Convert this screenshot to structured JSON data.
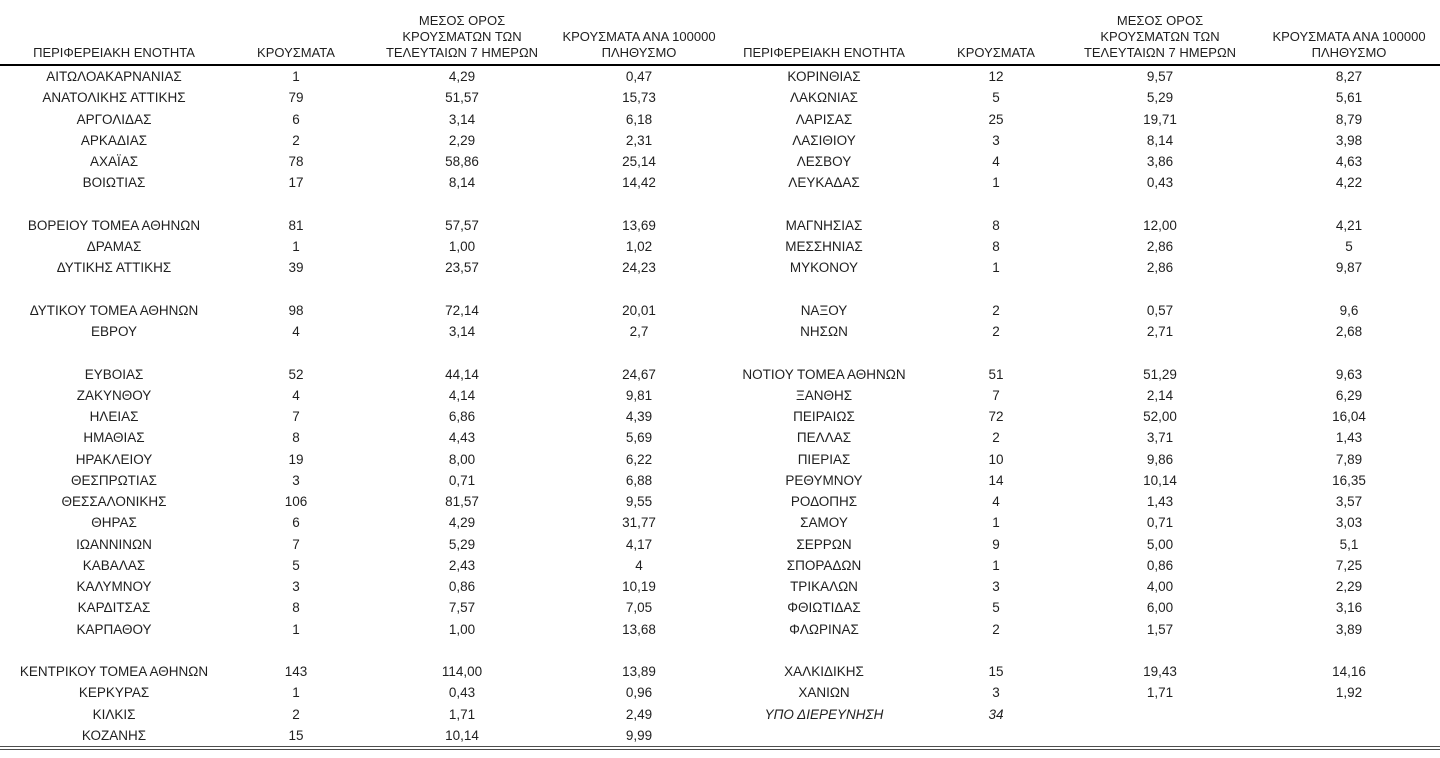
{
  "page": {
    "background": "#ffffff"
  },
  "colors": {
    "text": "#1f1f1f",
    "header_rule": "#000000",
    "bottom_rule": "#4d4d4d"
  },
  "table": {
    "column_headers": [
      "ΠΕΡΙΦΕΡΕΙΑΚΗ ΕΝΟΤΗΤΑ",
      "ΚΡΟΥΣΜΑΤΑ",
      "ΜΕΣΟΣ ΟΡΟΣ ΚΡΟΥΣΜΑΤΩΝ ΤΩΝ ΤΕΛΕΥΤΑΙΩΝ 7 ΗΜΕΡΩΝ",
      "ΚΡΟΥΣΜΑΤΑ ΑΝΑ 100000 ΠΛΗΘΥΣΜΟ"
    ],
    "rows": [
      {
        "left": [
          "ΑΙΤΩΛΟΑΚΑΡΝΑΝΙΑΣ",
          "1",
          "4,29",
          "0,47"
        ],
        "right": [
          "ΚΟΡΙΝΘΙΑΣ",
          "12",
          "9,57",
          "8,27"
        ]
      },
      {
        "left": [
          "ΑΝΑΤΟΛΙΚΗΣ ΑΤΤΙΚΗΣ",
          "79",
          "51,57",
          "15,73"
        ],
        "right": [
          "ΛΑΚΩΝΙΑΣ",
          "5",
          "5,29",
          "5,61"
        ]
      },
      {
        "left": [
          "ΑΡΓΟΛΙΔΑΣ",
          "6",
          "3,14",
          "6,18"
        ],
        "right": [
          "ΛΑΡΙΣΑΣ",
          "25",
          "19,71",
          "8,79"
        ]
      },
      {
        "left": [
          "ΑΡΚΑΔΙΑΣ",
          "2",
          "2,29",
          "2,31"
        ],
        "right": [
          "ΛΑΣΙΘΙΟΥ",
          "3",
          "8,14",
          "3,98"
        ]
      },
      {
        "left": [
          "ΑΧΑΪΑΣ",
          "78",
          "58,86",
          "25,14"
        ],
        "right": [
          "ΛΕΣΒΟΥ",
          "4",
          "3,86",
          "4,63"
        ]
      },
      {
        "left": [
          "ΒΟΙΩΤΙΑΣ",
          "17",
          "8,14",
          "14,42"
        ],
        "right": [
          "ΛΕΥΚΑΔΑΣ",
          "1",
          "0,43",
          "4,22"
        ]
      },
      {
        "spacer": true,
        "left": [
          "",
          "",
          "",
          ""
        ],
        "right": [
          "",
          "",
          "",
          ""
        ]
      },
      {
        "left": [
          "ΒΟΡΕΙΟΥ ΤΟΜΕΑ ΑΘΗΝΩΝ",
          "81",
          "57,57",
          "13,69"
        ],
        "right": [
          "ΜΑΓΝΗΣΙΑΣ",
          "8",
          "12,00",
          "4,21"
        ]
      },
      {
        "left": [
          "ΔΡΑΜΑΣ",
          "1",
          "1,00",
          "1,02"
        ],
        "right": [
          "ΜΕΣΣΗΝΙΑΣ",
          "8",
          "2,86",
          "5"
        ]
      },
      {
        "left": [
          "ΔΥΤΙΚΗΣ ΑΤΤΙΚΗΣ",
          "39",
          "23,57",
          "24,23"
        ],
        "right": [
          "ΜΥΚΟΝΟΥ",
          "1",
          "2,86",
          "9,87"
        ]
      },
      {
        "spacer": true,
        "left": [
          "",
          "",
          "",
          ""
        ],
        "right": [
          "",
          "",
          "",
          ""
        ]
      },
      {
        "left": [
          "ΔΥΤΙΚΟΥ ΤΟΜΕΑ ΑΘΗΝΩΝ",
          "98",
          "72,14",
          "20,01"
        ],
        "right": [
          "ΝΑΞΟΥ",
          "2",
          "0,57",
          "9,6"
        ]
      },
      {
        "left": [
          "ΕΒΡΟΥ",
          "4",
          "3,14",
          "2,7"
        ],
        "right": [
          "ΝΗΣΩΝ",
          "2",
          "2,71",
          "2,68"
        ]
      },
      {
        "spacer": true,
        "left": [
          "",
          "",
          "",
          ""
        ],
        "right": [
          "",
          "",
          "",
          ""
        ]
      },
      {
        "left": [
          "ΕΥΒΟΙΑΣ",
          "52",
          "44,14",
          "24,67"
        ],
        "right": [
          "ΝΟΤΙΟΥ ΤΟΜΕΑ ΑΘΗΝΩΝ",
          "51",
          "51,29",
          "9,63"
        ]
      },
      {
        "left": [
          "ΖΑΚΥΝΘΟΥ",
          "4",
          "4,14",
          "9,81"
        ],
        "right": [
          "ΞΑΝΘΗΣ",
          "7",
          "2,14",
          "6,29"
        ]
      },
      {
        "left": [
          "ΗΛΕΙΑΣ",
          "7",
          "6,86",
          "4,39"
        ],
        "right": [
          "ΠΕΙΡΑΙΩΣ",
          "72",
          "52,00",
          "16,04"
        ]
      },
      {
        "left": [
          "ΗΜΑΘΙΑΣ",
          "8",
          "4,43",
          "5,69"
        ],
        "right": [
          "ΠΕΛΛΑΣ",
          "2",
          "3,71",
          "1,43"
        ]
      },
      {
        "left": [
          "ΗΡΑΚΛΕΙΟΥ",
          "19",
          "8,00",
          "6,22"
        ],
        "right": [
          "ΠΙΕΡΙΑΣ",
          "10",
          "9,86",
          "7,89"
        ]
      },
      {
        "left": [
          "ΘΕΣΠΡΩΤΙΑΣ",
          "3",
          "0,71",
          "6,88"
        ],
        "right": [
          "ΡΕΘΥΜΝΟΥ",
          "14",
          "10,14",
          "16,35"
        ]
      },
      {
        "left": [
          "ΘΕΣΣΑΛΟΝΙΚΗΣ",
          "106",
          "81,57",
          "9,55"
        ],
        "right": [
          "ΡΟΔΟΠΗΣ",
          "4",
          "1,43",
          "3,57"
        ]
      },
      {
        "left": [
          "ΘΗΡΑΣ",
          "6",
          "4,29",
          "31,77"
        ],
        "right": [
          "ΣΑΜΟΥ",
          "1",
          "0,71",
          "3,03"
        ]
      },
      {
        "left": [
          "ΙΩΑΝΝΙΝΩΝ",
          "7",
          "5,29",
          "4,17"
        ],
        "right": [
          "ΣΕΡΡΩΝ",
          "9",
          "5,00",
          "5,1"
        ]
      },
      {
        "left": [
          "ΚΑΒΑΛΑΣ",
          "5",
          "2,43",
          "4"
        ],
        "right": [
          "ΣΠΟΡΑΔΩΝ",
          "1",
          "0,86",
          "7,25"
        ]
      },
      {
        "left": [
          "ΚΑΛΥΜΝΟΥ",
          "3",
          "0,86",
          "10,19"
        ],
        "right": [
          "ΤΡΙΚΑΛΩΝ",
          "3",
          "4,00",
          "2,29"
        ]
      },
      {
        "left": [
          "ΚΑΡΔΙΤΣΑΣ",
          "8",
          "7,57",
          "7,05"
        ],
        "right": [
          "ΦΘΙΩΤΙΔΑΣ",
          "5",
          "6,00",
          "3,16"
        ]
      },
      {
        "left": [
          "ΚΑΡΠΑΘΟΥ",
          "1",
          "1,00",
          "13,68"
        ],
        "right": [
          "ΦΛΩΡΙΝΑΣ",
          "2",
          "1,57",
          "3,89"
        ]
      },
      {
        "spacer": true,
        "left": [
          "",
          "",
          "",
          ""
        ],
        "right": [
          "",
          "",
          "",
          ""
        ]
      },
      {
        "left": [
          "ΚΕΝΤΡΙΚΟΥ ΤΟΜΕΑ ΑΘΗΝΩΝ",
          "143",
          "114,00",
          "13,89"
        ],
        "right": [
          "ΧΑΛΚΙΔΙΚΗΣ",
          "15",
          "19,43",
          "14,16"
        ]
      },
      {
        "left": [
          "ΚΕΡΚΥΡΑΣ",
          "1",
          "0,43",
          "0,96"
        ],
        "right": [
          "ΧΑΝΙΩΝ",
          "3",
          "1,71",
          "1,92"
        ]
      },
      {
        "left": [
          "ΚΙΛΚΙΣ",
          "2",
          "1,71",
          "2,49"
        ],
        "right": [
          "ΥΠΟ ΔΙΕΡΕΥΝΗΣΗ",
          "34",
          "",
          ""
        ],
        "right_italic": true
      },
      {
        "left": [
          "ΚΟΖΑΝΗΣ",
          "15",
          "10,14",
          "9,99"
        ],
        "right": [
          "",
          "",
          "",
          ""
        ]
      }
    ]
  }
}
